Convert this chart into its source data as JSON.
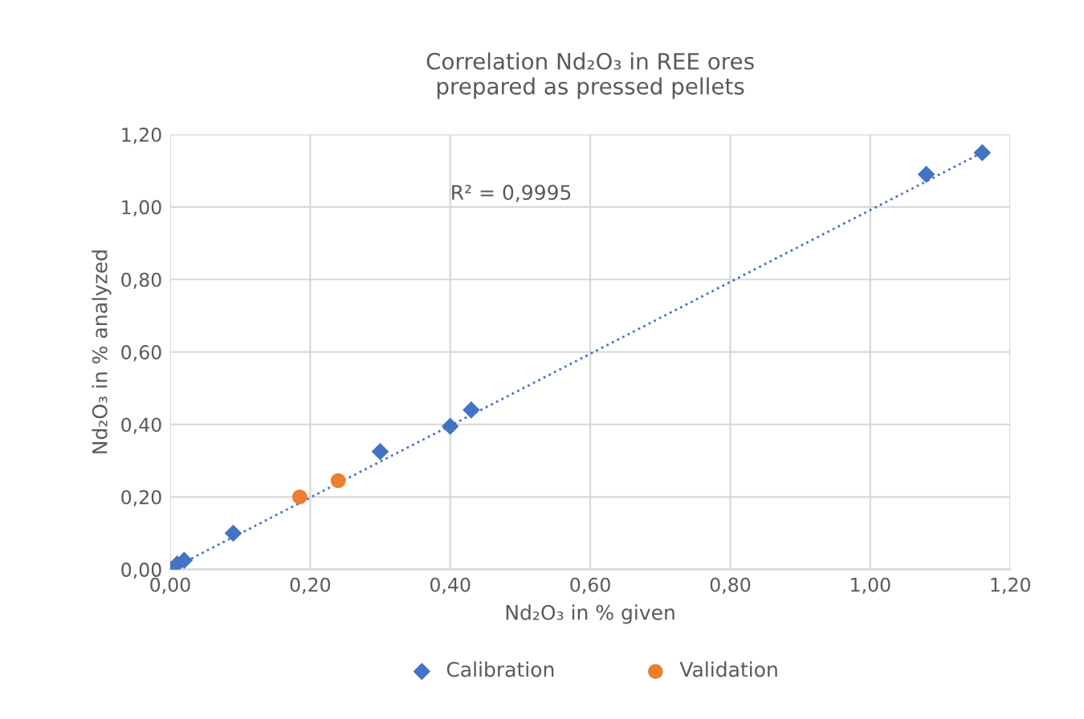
{
  "chart_data": {
    "type": "scatter",
    "title": "Correlation Nd₂O₃ in REE ores\nprepared as pressed pellets",
    "xlabel": "Nd₂O₃ in % given",
    "ylabel": "Nd₂O₃ in % analyzed",
    "annotations": [
      "R² = 0,9995"
    ],
    "series": [
      {
        "name": "Calibration",
        "color": "#4472c4",
        "marker": "diamond",
        "x": [
          0.0,
          0.005,
          0.01,
          0.02,
          0.09,
          0.3,
          0.4,
          0.43,
          1.08,
          1.16
        ],
        "values": [
          0.0,
          null,
          0.015,
          0.025,
          0.1,
          0.325,
          0.395,
          0.44,
          1.09,
          1.15
        ]
      },
      {
        "name": "Validation",
        "color": "#ed7d31",
        "marker": "circle",
        "x": [
          0.185,
          0.24
        ],
        "values": [
          0.2,
          0.245
        ]
      },
      {
        "type": "line",
        "color": "#4472c4",
        "marker": "none",
        "line_style": "dotted",
        "x": [
          0.0,
          1.16
        ],
        "values": [
          0.0,
          1.15
        ]
      }
    ],
    "xlim": [
      0,
      1.2
    ],
    "ylim": [
      0,
      1.2
    ],
    "xticks": [
      {
        "value": 0,
        "label": "0,00"
      },
      {
        "value": 0.2,
        "label": "0,20"
      },
      {
        "value": 0.4,
        "label": "0,40"
      },
      {
        "value": 0.6,
        "label": "0,60"
      },
      {
        "value": 0.8,
        "label": "0,80"
      },
      {
        "value": 1.0,
        "label": "1,00"
      },
      {
        "value": 1.2,
        "label": "1,20"
      }
    ],
    "yticks": [
      {
        "value": 0,
        "label": "0,00"
      },
      {
        "value": 0.2,
        "label": "0,20"
      },
      {
        "value": 0.4,
        "label": "0,40"
      },
      {
        "value": 0.6,
        "label": "0,60"
      },
      {
        "value": 0.8,
        "label": "0,80"
      },
      {
        "value": 1.0,
        "label": "1,00"
      },
      {
        "value": 1.2,
        "label": "1,20"
      }
    ],
    "grid": true,
    "legend": "bottom"
  }
}
